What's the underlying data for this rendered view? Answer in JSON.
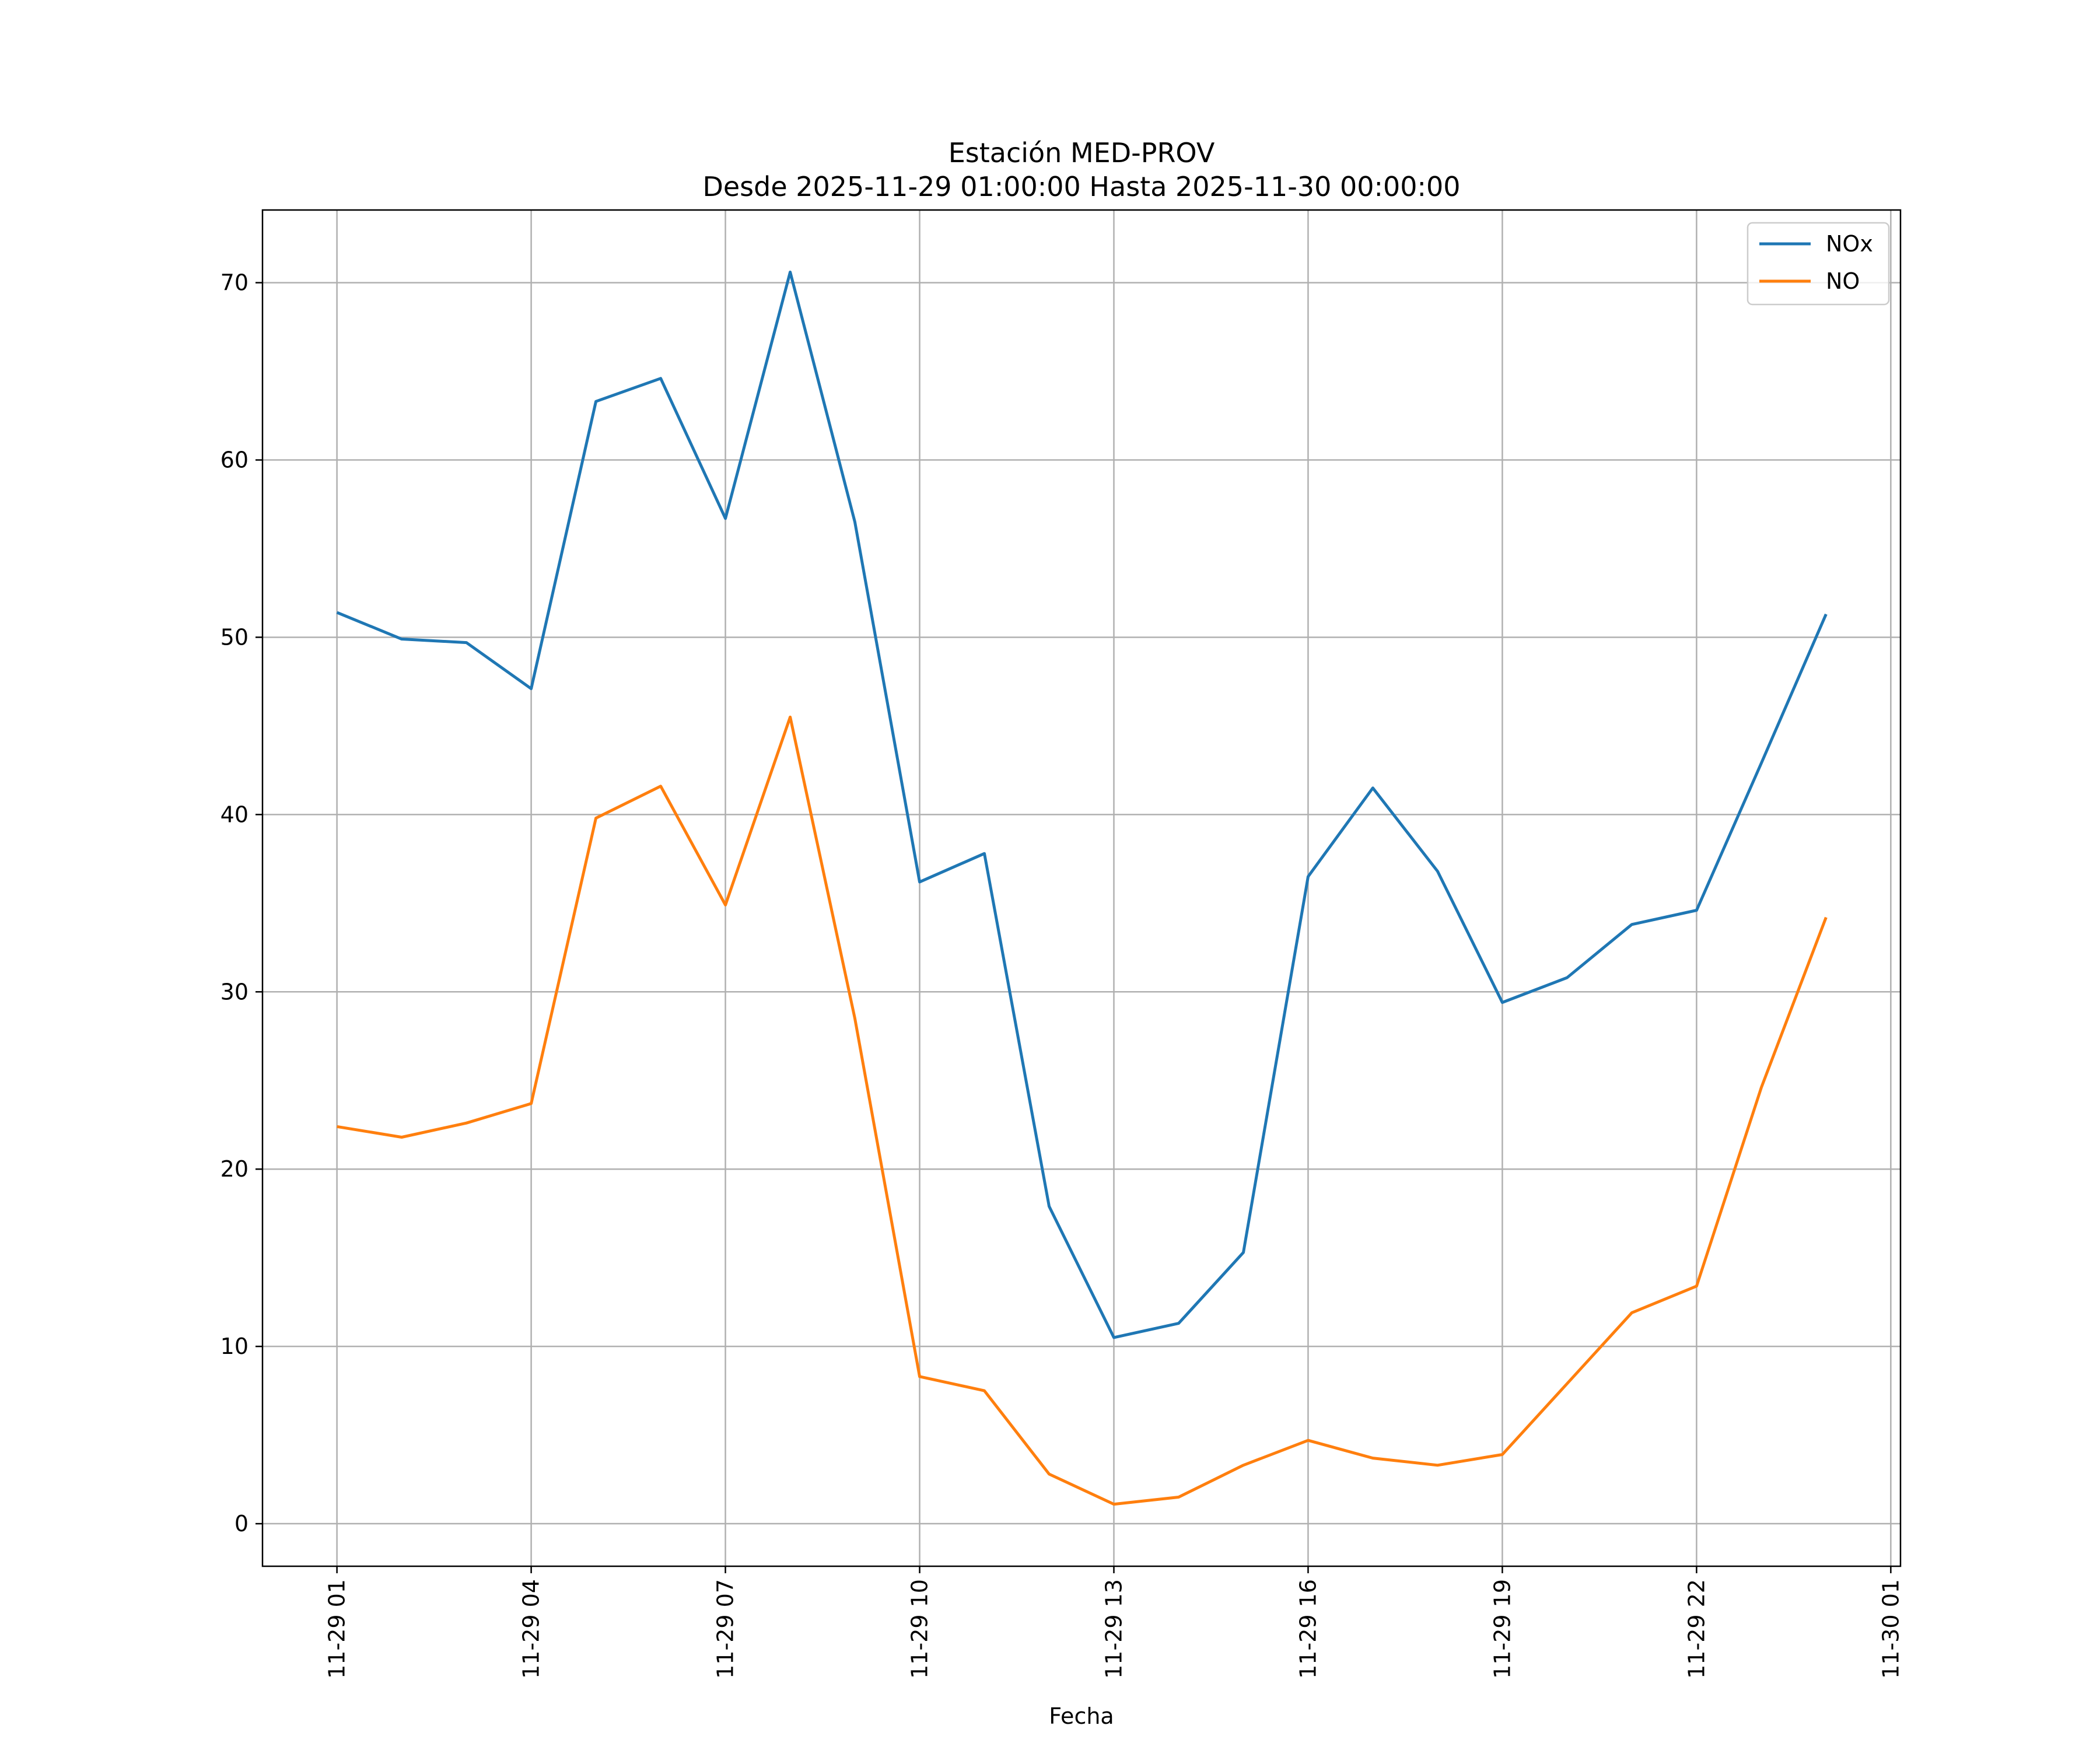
{
  "chart_data": {
    "type": "line",
    "title": "Estación MED-PROV",
    "subtitle": "Desde 2025-11-29 01:00:00 Hasta 2025-11-30 00:00:00",
    "xlabel": "Fecha",
    "ylabel": "",
    "x": [
      "2025-11-29 01:00",
      "2025-11-29 02:00",
      "2025-11-29 03:00",
      "2025-11-29 04:00",
      "2025-11-29 05:00",
      "2025-11-29 06:00",
      "2025-11-29 07:00",
      "2025-11-29 08:00",
      "2025-11-29 09:00",
      "2025-11-29 10:00",
      "2025-11-29 11:00",
      "2025-11-29 12:00",
      "2025-11-29 13:00",
      "2025-11-29 14:00",
      "2025-11-29 15:00",
      "2025-11-29 16:00",
      "2025-11-29 17:00",
      "2025-11-29 18:00",
      "2025-11-29 19:00",
      "2025-11-29 20:00",
      "2025-11-29 21:00",
      "2025-11-29 22:00",
      "2025-11-29 23:00",
      "2025-11-30 00:00"
    ],
    "x_hours": [
      0,
      1,
      2,
      3,
      4,
      5,
      6,
      7,
      8,
      9,
      10,
      11,
      12,
      13,
      14,
      15,
      16,
      17,
      18,
      19,
      20,
      21,
      22,
      23
    ],
    "xlim": [
      -1.15,
      24.15
    ],
    "xticks": [
      {
        "hour": 0,
        "label": "11-29 01"
      },
      {
        "hour": 3,
        "label": "11-29 04"
      },
      {
        "hour": 6,
        "label": "11-29 07"
      },
      {
        "hour": 9,
        "label": "11-29 10"
      },
      {
        "hour": 12,
        "label": "11-29 13"
      },
      {
        "hour": 15,
        "label": "11-29 16"
      },
      {
        "hour": 18,
        "label": "11-29 19"
      },
      {
        "hour": 21,
        "label": "11-29 22"
      },
      {
        "hour": 24,
        "label": "11-30 01"
      }
    ],
    "ylim": [
      -2.4,
      74.1
    ],
    "yticks": [
      0,
      10,
      20,
      30,
      40,
      50,
      60,
      70
    ],
    "grid": true,
    "legend_position": "top-right",
    "series": [
      {
        "name": "NOx",
        "color": "#1f77b4",
        "values": [
          51.4,
          49.9,
          49.7,
          47.1,
          63.3,
          64.6,
          56.7,
          70.6,
          56.5,
          36.2,
          37.8,
          17.9,
          10.5,
          11.3,
          15.3,
          36.5,
          41.5,
          36.8,
          29.4,
          30.8,
          33.8,
          34.6,
          42.9,
          51.3
        ]
      },
      {
        "name": "NO",
        "color": "#ff7f0e",
        "values": [
          22.4,
          21.8,
          22.6,
          23.7,
          39.8,
          41.6,
          34.9,
          45.5,
          28.5,
          8.3,
          7.5,
          2.8,
          1.1,
          1.5,
          3.3,
          4.7,
          3.7,
          3.3,
          3.9,
          7.9,
          11.9,
          13.4,
          24.6,
          34.2
        ]
      }
    ]
  }
}
